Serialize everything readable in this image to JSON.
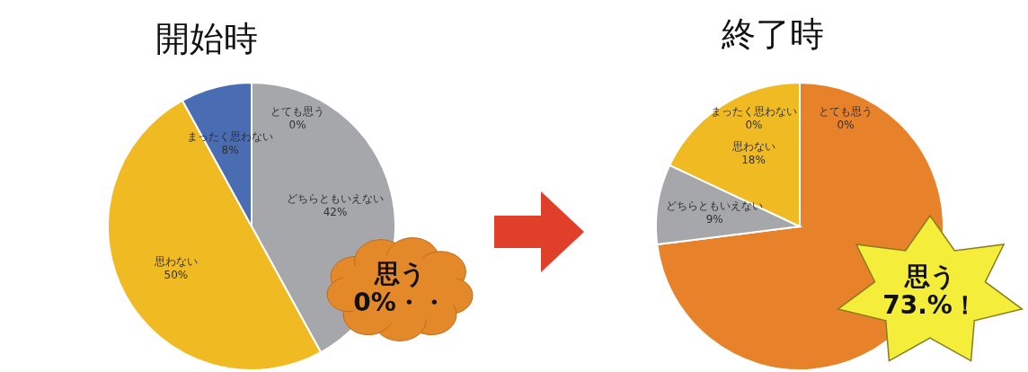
{
  "chart_data": [
    {
      "type": "pie",
      "title": "開始時",
      "categories": [
        "とても思う",
        null,
        "どちらともいえない",
        "思わない",
        "まったく思わない"
      ],
      "values": [
        0,
        0,
        42,
        50,
        8
      ],
      "value_labels": [
        "0%",
        null,
        "42%",
        "50%",
        "8%"
      ],
      "colors": [
        "#a6a7ab",
        "#e8822a",
        "#a6a7ab",
        "#f0bb22",
        "#4a6cb3"
      ],
      "annotations": [
        "思う\n0%・・"
      ]
    },
    {
      "type": "pie",
      "title": "終了時",
      "categories": [
        "とても思う",
        null,
        "どちらともいえない",
        "思わない",
        "まったく思わない"
      ],
      "values": [
        0,
        73,
        9,
        18,
        0
      ],
      "value_labels": [
        "0%",
        null,
        "9%",
        "18%",
        "0%"
      ],
      "colors": [
        "#e8822a",
        "#e8822a",
        "#a6a7ab",
        "#f0bb22",
        "#f0bb22"
      ],
      "annotations": [
        "思う\n73.%！"
      ]
    }
  ]
}
